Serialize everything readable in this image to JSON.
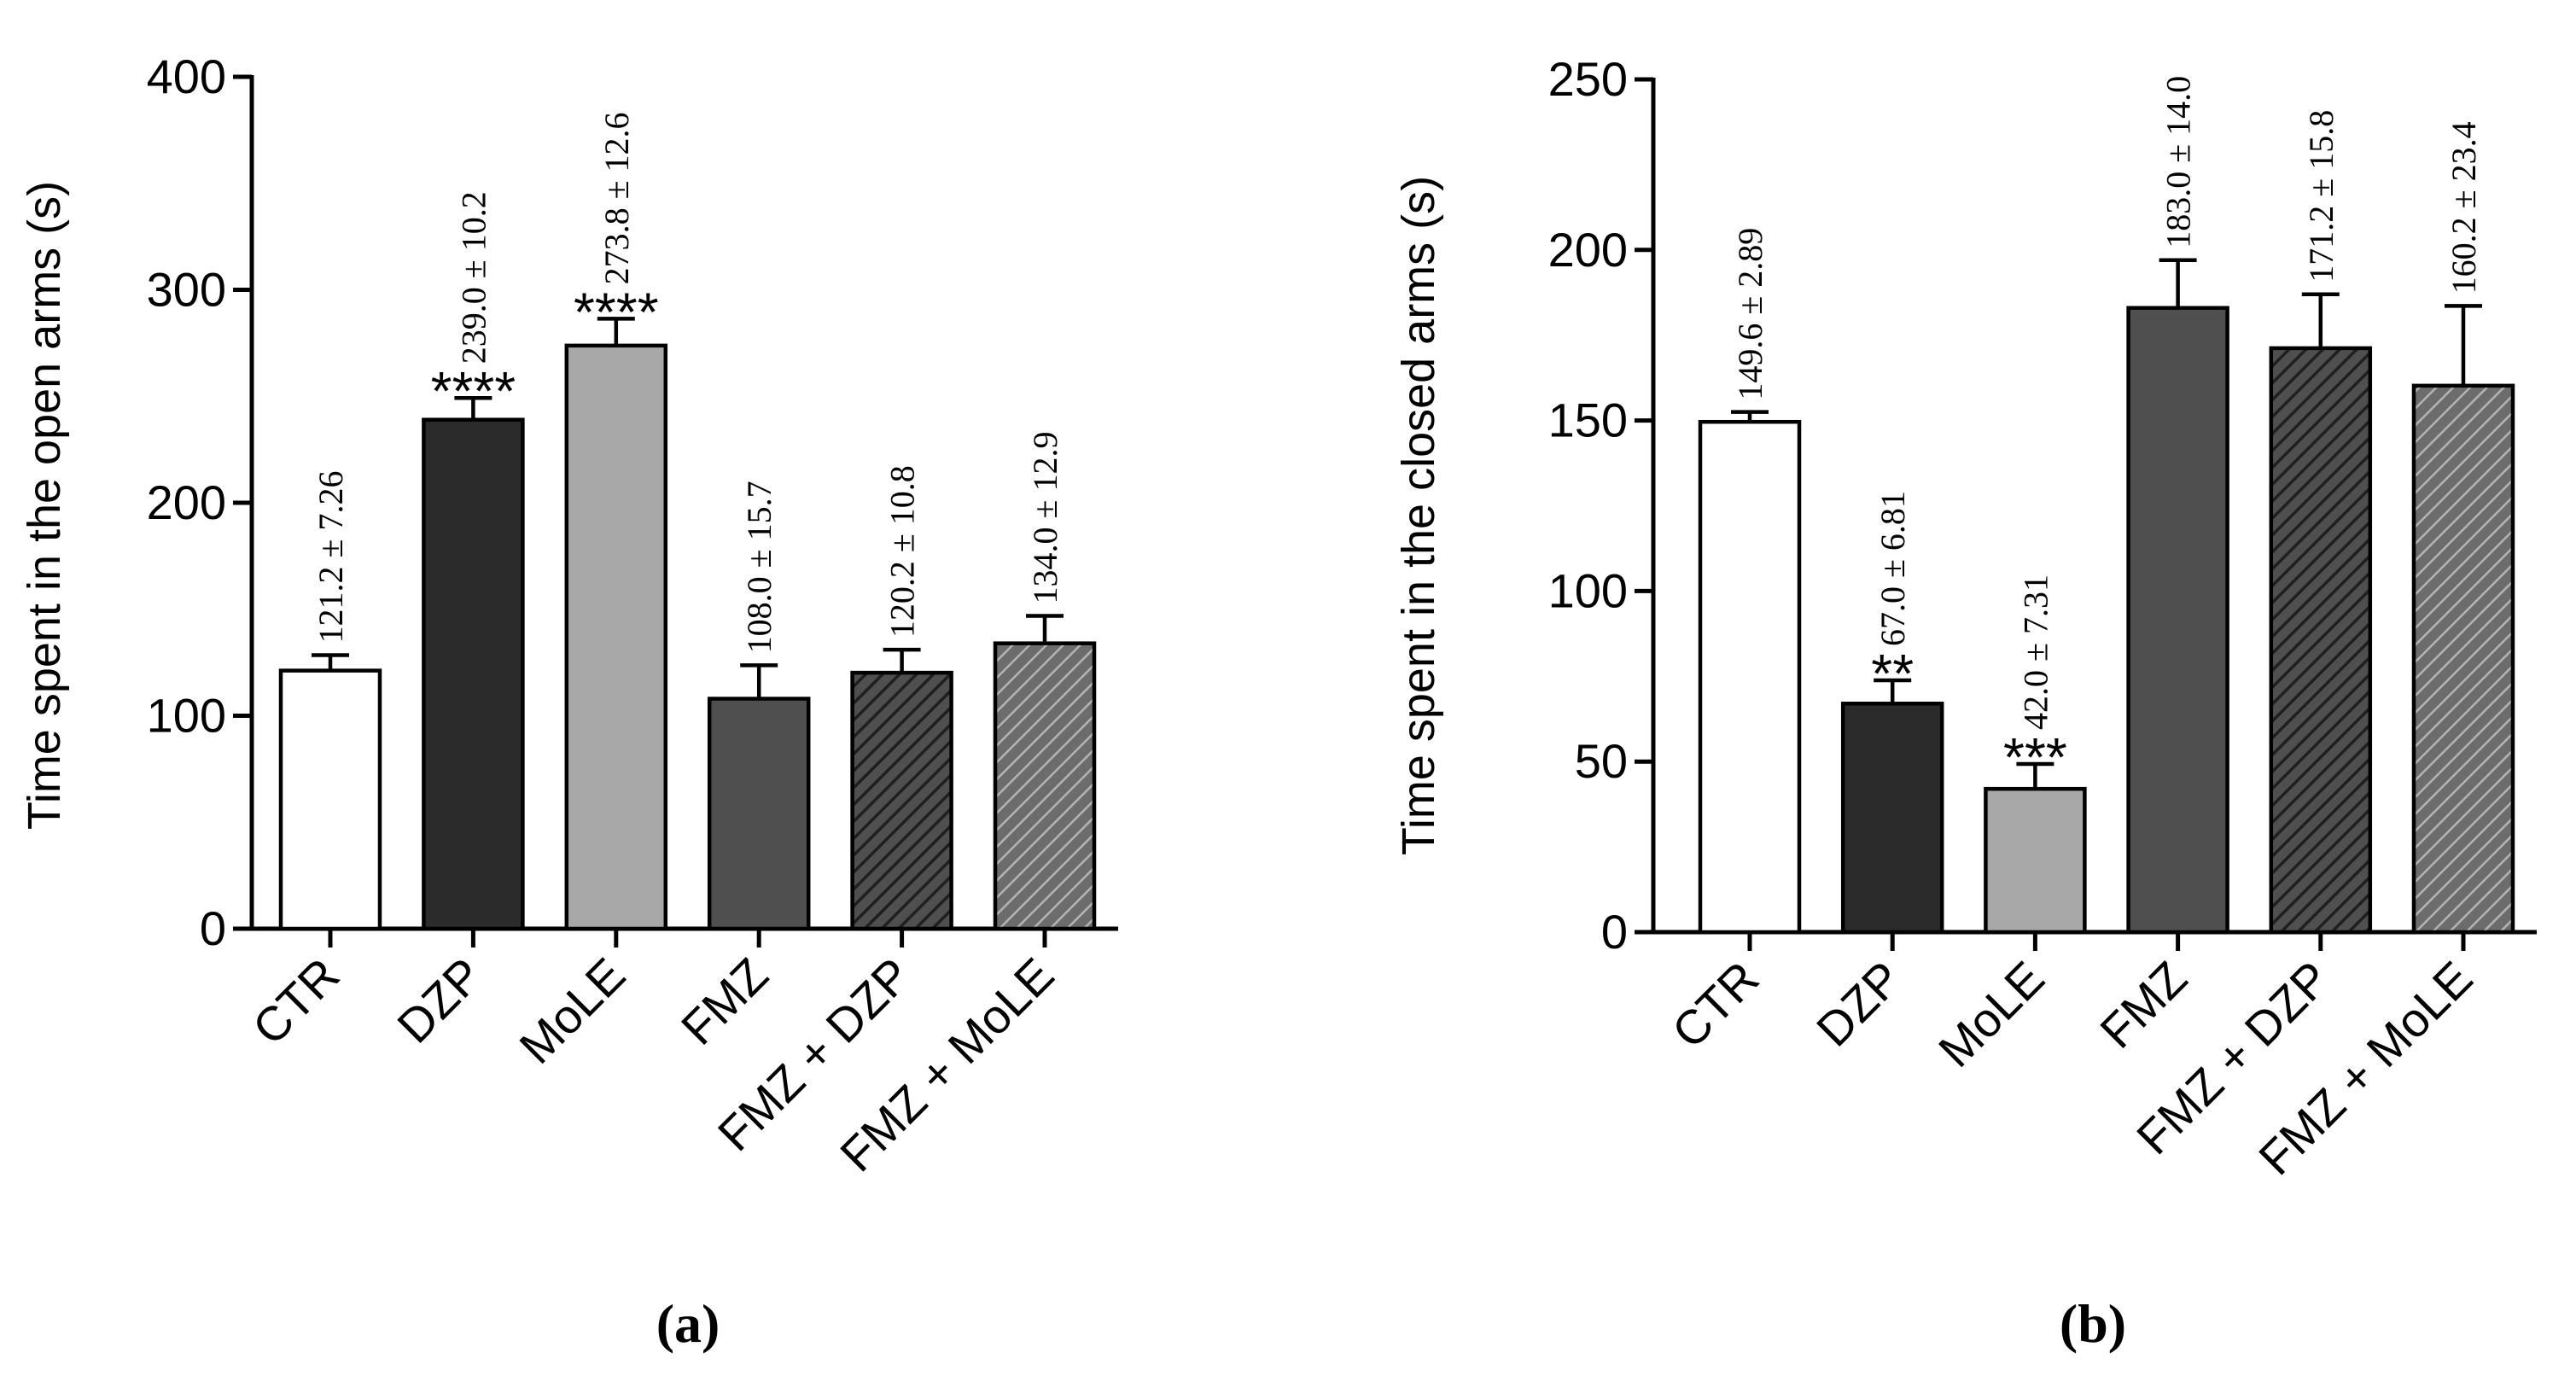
{
  "chart_data": [
    {
      "type": "bar",
      "panel_label": "(a)",
      "ylabel": "Time spent in the open arms (s)",
      "xlabel": "",
      "ylim": [
        0,
        400
      ],
      "yticks": [
        "0",
        "100",
        "200",
        "300",
        "400"
      ],
      "categories": [
        "CTR",
        "DZP",
        "MoLE",
        "FMZ",
        "FMZ + DZP",
        "FMZ + MoLE"
      ],
      "values": [
        121.2,
        239.0,
        273.8,
        108.0,
        120.2,
        134.0
      ],
      "errors": [
        7.26,
        10.2,
        12.6,
        15.7,
        10.8,
        12.9
      ],
      "value_labels": [
        "121.2 ± 7.26",
        "239.0 ± 10.2",
        "273.8 ± 12.6",
        "108.0 ± 15.7",
        "120.2 ± 10.8",
        "134.0 ± 12.9"
      ],
      "significance": [
        "",
        "****",
        "****",
        "",
        "",
        ""
      ],
      "fills": [
        "#ffffff",
        "#2b2b2b",
        "#a8a8a8",
        "#4f4f4f",
        "hatch-dark",
        "hatch-light"
      ]
    },
    {
      "type": "bar",
      "panel_label": "(b)",
      "ylabel": "Time spent in the closed arms (s)",
      "xlabel": "",
      "ylim": [
        0,
        250
      ],
      "yticks": [
        "0",
        "50",
        "100",
        "150",
        "200",
        "250"
      ],
      "categories": [
        "CTR",
        "DZP",
        "MoLE",
        "FMZ",
        "FMZ + DZP",
        "FMZ + MoLE"
      ],
      "values": [
        149.6,
        67.0,
        42.0,
        183.0,
        171.2,
        160.2
      ],
      "errors": [
        2.89,
        6.81,
        7.31,
        14.0,
        15.8,
        23.4
      ],
      "value_labels": [
        "149.6 ± 2.89",
        "67.0 ± 6.81",
        "42.0 ± 7.31",
        "183.0 ± 14.0",
        "171.2 ± 15.8",
        "160.2 ± 23.4"
      ],
      "significance": [
        "",
        "**",
        "***",
        "",
        "",
        ""
      ],
      "fills": [
        "#ffffff",
        "#2b2b2b",
        "#a8a8a8",
        "#4f4f4f",
        "hatch-dark",
        "hatch-light"
      ]
    }
  ]
}
